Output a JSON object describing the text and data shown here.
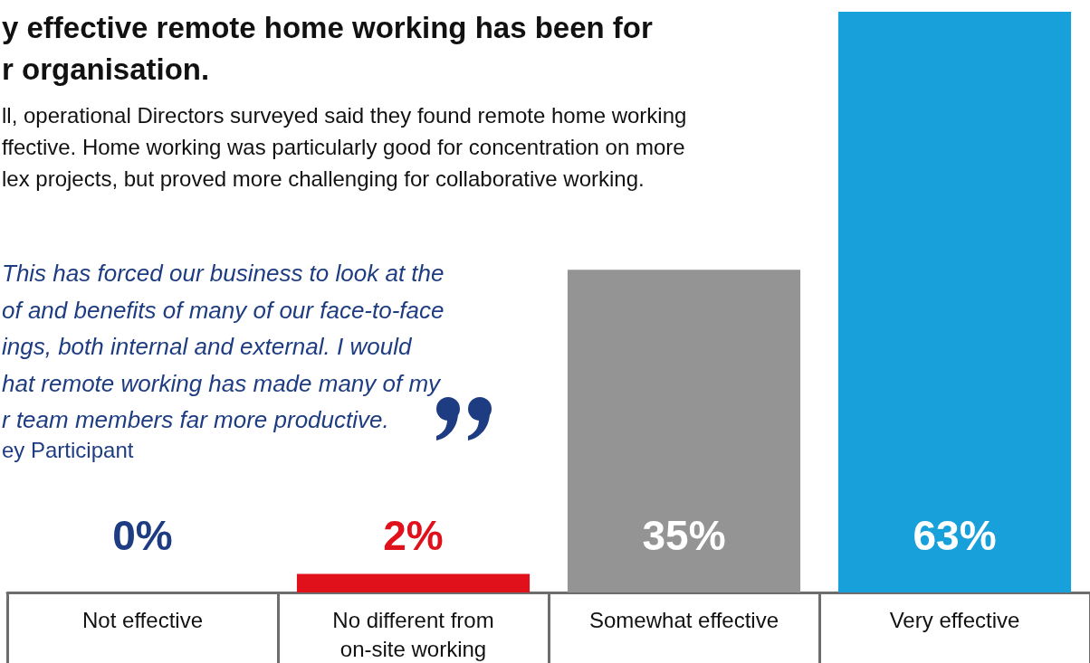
{
  "chart_data": {
    "type": "bar",
    "title": "y effective remote home working has been for\nr organisation.",
    "subtitle": "ll, operational Directors surveyed said they found remote home working\nffective. Home working was particularly good for concentration on more\nlex projects, but proved more challenging for collaborative working.",
    "annotations": [
      "This has forced our business to look at the\nof and benefits of many of our face-to-face\nings, both internal and external. I would\nhat remote working has made many of my\nr team members far more productive.",
      "ey Participant"
    ],
    "categories": [
      "Not effective",
      "No different from\non-site working",
      "Somewhat effective",
      "Very effective"
    ],
    "values": [
      0,
      2,
      35,
      63
    ],
    "colors": [
      "#1d3c81",
      "#e0111b",
      "#949494",
      "#18a0db"
    ],
    "value_labels": [
      "0%",
      "2%",
      "35%",
      "63%"
    ]
  }
}
